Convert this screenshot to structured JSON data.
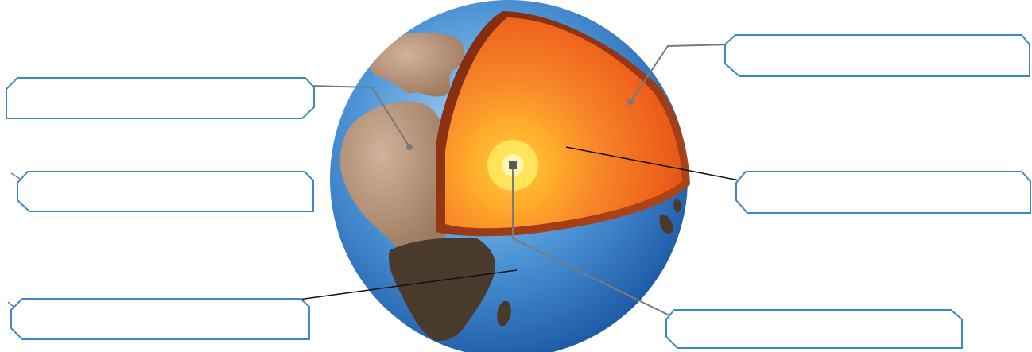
{
  "colors": {
    "box_outline": "#3d86c8",
    "box_fill": "#ffffff",
    "leader_gray": "#7a7a7a",
    "leader_black": "#111111",
    "ocean_light": "#8fc4ee",
    "ocean_dark": "#1f63b0",
    "land": "#b8957a",
    "land_dark": "#4a3a2c",
    "crust_shell": "#9b3d18",
    "mantle": "#f0641a",
    "outer_core": "#f7902a",
    "inner_core": "#ffe35a"
  },
  "icons": {
    "earth_cross_section": "earth-cutaway-illustration"
  },
  "labels": [
    {
      "id": "left-1",
      "text": ""
    },
    {
      "id": "left-2",
      "text": ""
    },
    {
      "id": "left-3",
      "text": ""
    },
    {
      "id": "right-1",
      "text": ""
    },
    {
      "id": "right-2",
      "text": ""
    },
    {
      "id": "right-3",
      "text": ""
    }
  ]
}
